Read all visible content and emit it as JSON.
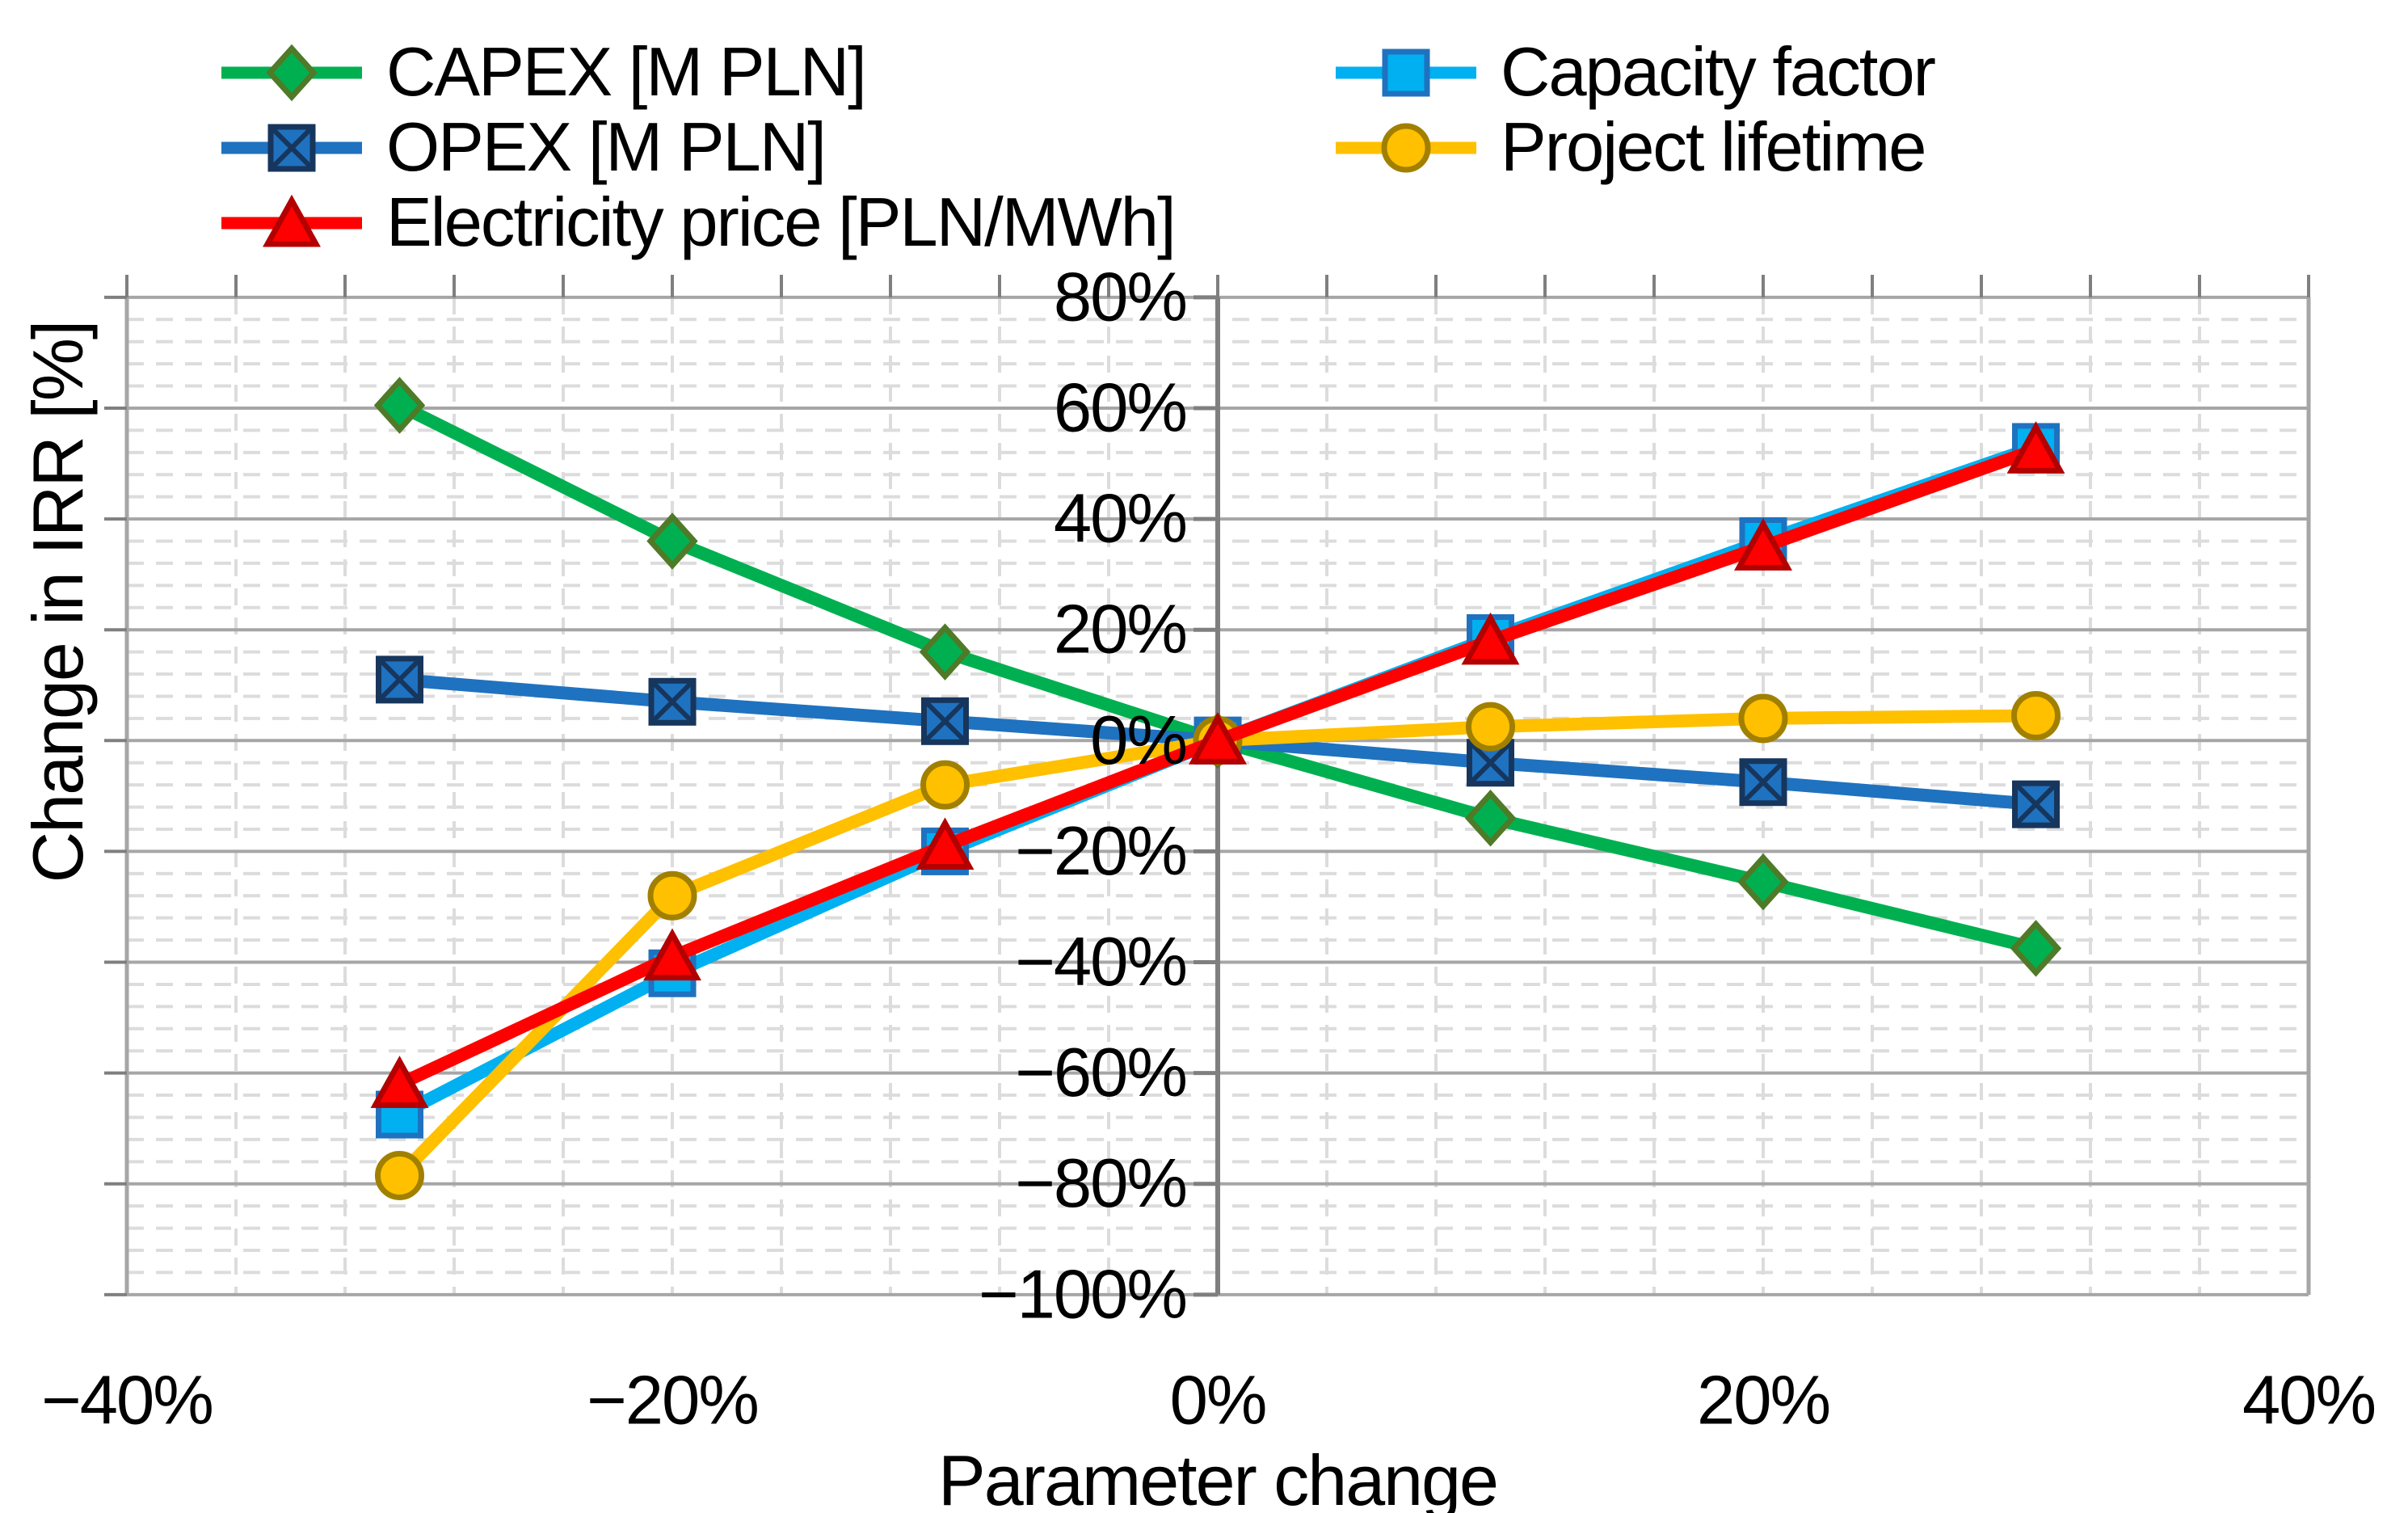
{
  "chart": {
    "y_axis_title": "Change in IRR [%]",
    "x_axis_title": "Parameter change"
  },
  "chart_data": {
    "type": "line",
    "x": [
      -30,
      -20,
      -10,
      0,
      10,
      20,
      30
    ],
    "x_unit": "percent change of parameter",
    "series": [
      {
        "name": "CAPEX [M PLN]",
        "marker": "diamond",
        "color": "#00B050",
        "edge": "#4F7A28",
        "values": [
          60.5,
          36,
          16,
          0,
          -14,
          -25.5,
          -37.5
        ]
      },
      {
        "name": "OPEX [M PLN]",
        "marker": "square-x",
        "color": "#1F72BF",
        "edge": "#17365D",
        "values": [
          11,
          7,
          3.5,
          0,
          -4,
          -7.5,
          -11.5
        ]
      },
      {
        "name": "Electricity price [PLN/MWh]",
        "marker": "triangle",
        "color": "#FF0000",
        "edge": "#B30000",
        "values": [
          -62,
          -39,
          -19,
          0,
          18,
          35,
          52.5
        ]
      },
      {
        "name": "Capacity factor",
        "marker": "square",
        "color": "#00B0F0",
        "edge": "#1F72BF",
        "values": [
          -67.5,
          -42,
          -20,
          0,
          18.5,
          36,
          53
        ]
      },
      {
        "name": "Project lifetime",
        "marker": "circle",
        "color": "#FFC000",
        "edge": "#A18000",
        "values": [
          -78.5,
          -28,
          -8,
          0,
          2.5,
          4,
          4.5
        ]
      }
    ],
    "draw_order": [
      0,
      1,
      3,
      4,
      2
    ],
    "title": "",
    "xlabel": "Parameter change",
    "ylabel": "Change in IRR [%]",
    "xlim": [
      -40,
      40
    ],
    "ylim": [
      -100,
      80
    ],
    "x_tick_values": [
      -40,
      -20,
      0,
      20,
      40
    ],
    "x_ticks": [
      "−40%",
      "−20%",
      "0%",
      "20%",
      "40%"
    ],
    "y_tick_values": [
      80,
      60,
      40,
      20,
      0,
      -20,
      -40,
      -60,
      -80,
      -100
    ],
    "y_ticks": [
      "80%",
      "60%",
      "40%",
      "20%",
      "0%",
      "−20%",
      "−40%",
      "−60%",
      "−80%",
      "−100%"
    ],
    "minor_unit": 4,
    "grid": "major solid gray, minor dashed light-gray, both axes",
    "legend_position": "top, two columns, no border",
    "colors": {
      "major_gridline": "#A6A6A6",
      "minor_gridline": "#DCDCDC",
      "axis_line": "#7F7F7F",
      "text": "#000000",
      "background": "#FFFFFF"
    }
  },
  "legend": {
    "columns": [
      [
        0,
        1,
        2
      ],
      [
        3,
        4
      ]
    ]
  }
}
